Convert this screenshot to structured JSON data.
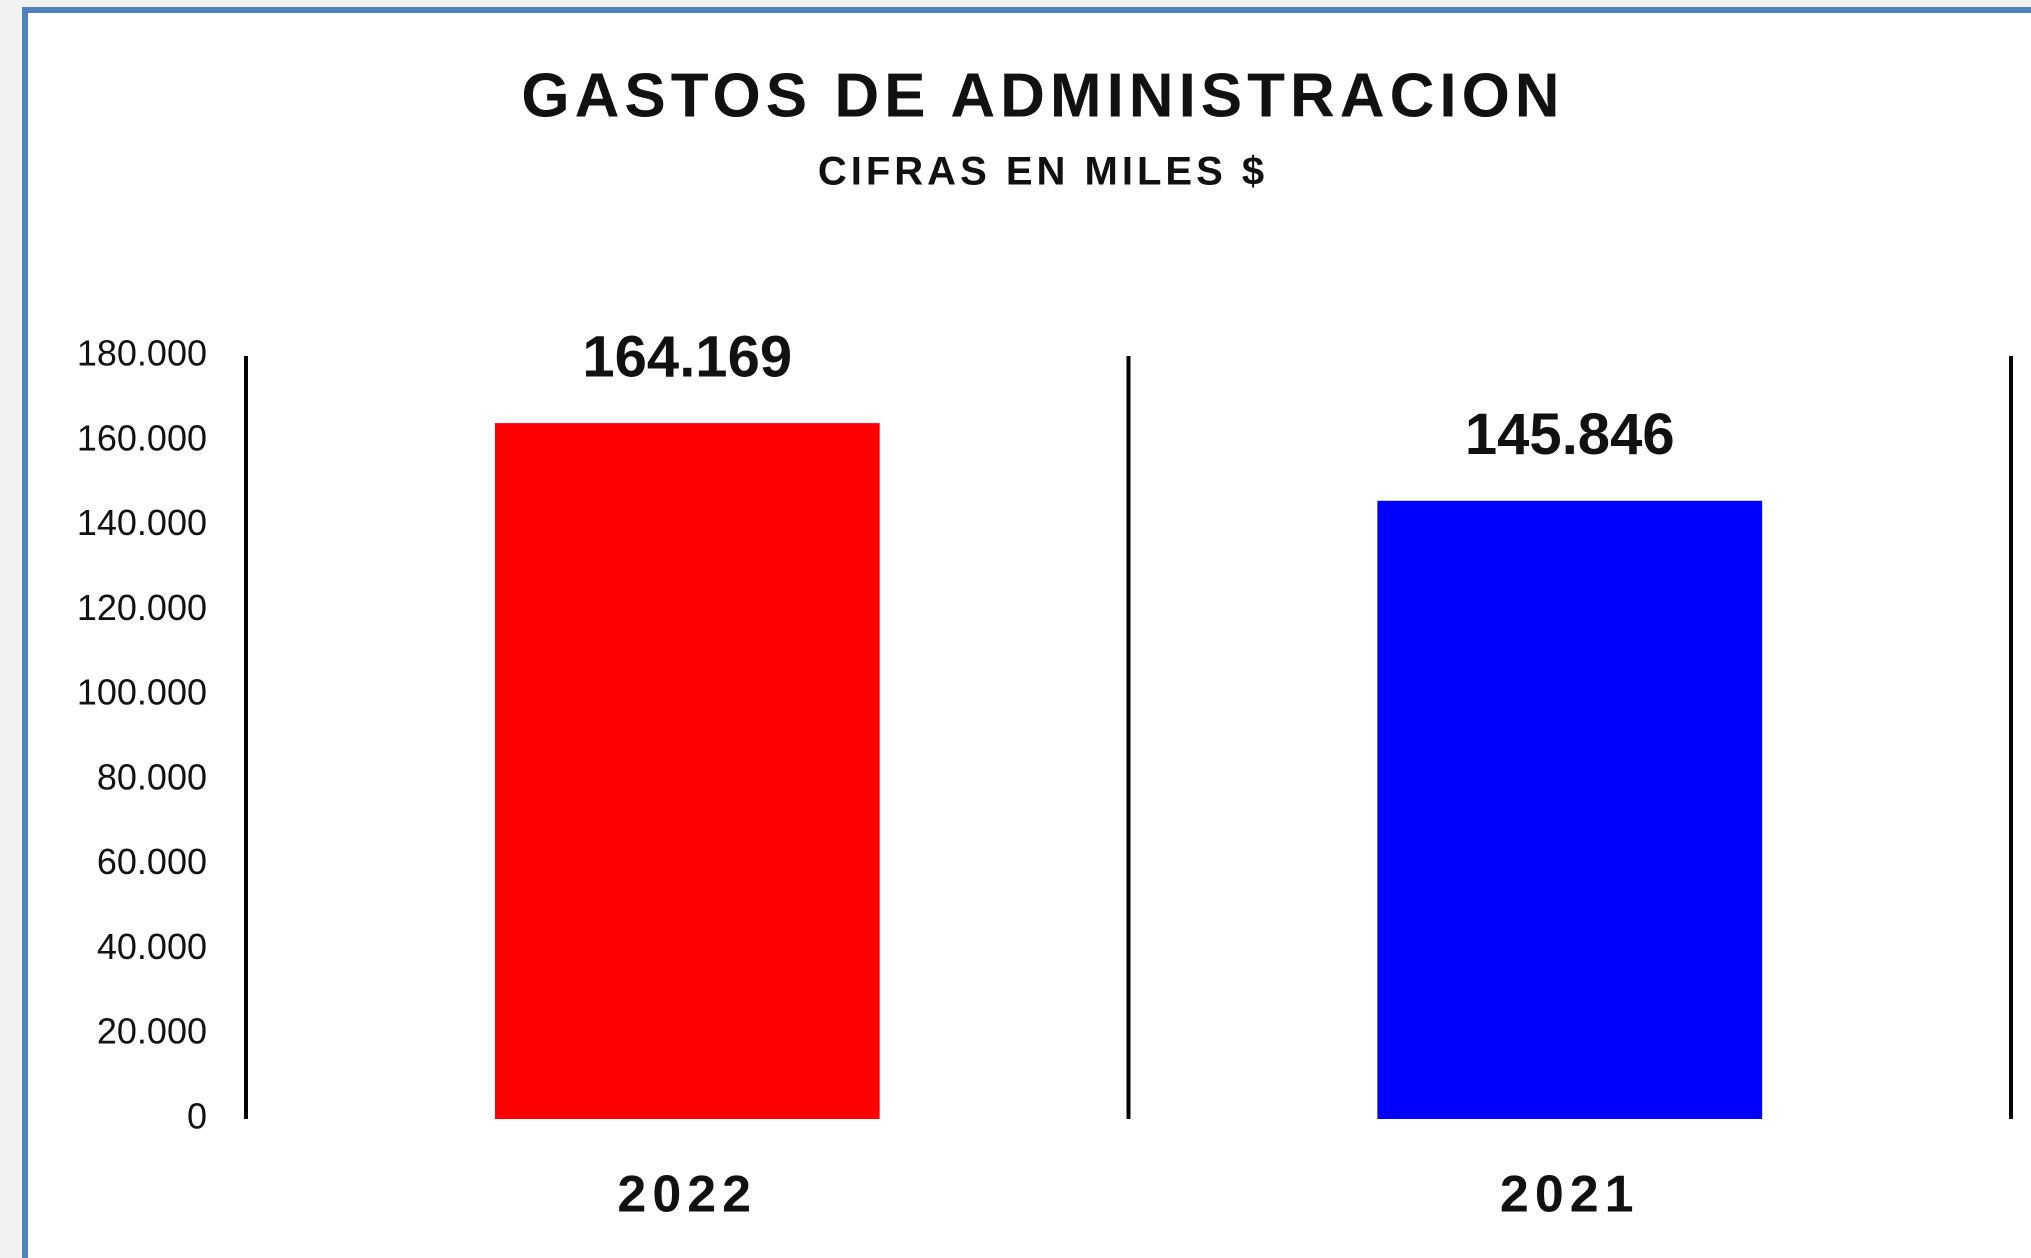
{
  "chart_data": {
    "type": "bar",
    "title": "GASTOS DE ADMINISTRACION",
    "subtitle": "CIFRAS EN MILES $",
    "categories": [
      "2022",
      "2021"
    ],
    "values": [
      164169,
      145846
    ],
    "value_labels": [
      "164.169",
      "145.846"
    ],
    "colors": [
      "#ff0000",
      "#0000ff"
    ],
    "ylim": [
      0,
      180000
    ],
    "yticks": [
      0,
      {
        "value": 20000,
        "label": "20.000"
      },
      {
        "value": 40000,
        "label": "40.000"
      },
      {
        "value": 60000,
        "label": "60.000"
      },
      {
        "value": 80000,
        "label": "80.000"
      },
      {
        "value": 100000,
        "label": "100.000"
      },
      {
        "value": 120000,
        "label": "120.000"
      },
      {
        "value": 140000,
        "label": "140.000"
      },
      {
        "value": 160000,
        "label": "160.000"
      },
      {
        "value": 180000,
        "label": "180.000"
      }
    ]
  }
}
